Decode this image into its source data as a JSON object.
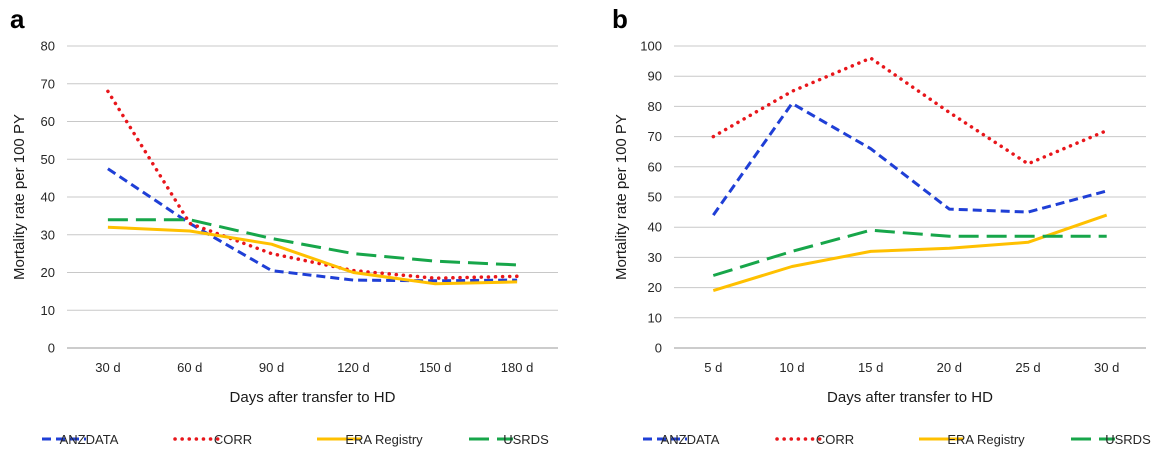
{
  "colors": {
    "ANZDATA": "#1f3fd6",
    "CORR": "#e8161b",
    "ERA Registry": "#ffc000",
    "USRDS": "#17a64a",
    "grid": "#c8c8c8",
    "axis": "#999999"
  },
  "chart_data": [
    {
      "type": "line",
      "panel": "a",
      "xlabel": "Days after transfer to HD",
      "ylabel": "Mortality rate per 100 PY",
      "ylim": [
        0,
        80
      ],
      "ytick_step": 10,
      "grid": true,
      "legend_position": "bottom",
      "categories": [
        "30 d",
        "60 d",
        "90 d",
        "120 d",
        "150 d",
        "180 d"
      ],
      "series": [
        {
          "name": "ANZDATA",
          "style": "dashed",
          "values": [
            47.5,
            33,
            20.5,
            18,
            17.8,
            18
          ]
        },
        {
          "name": "CORR",
          "style": "dotted",
          "values": [
            68,
            33,
            25,
            20.5,
            18.5,
            19
          ]
        },
        {
          "name": "ERA Registry",
          "style": "solid",
          "values": [
            32,
            31,
            27.5,
            20,
            17,
            17.5
          ]
        },
        {
          "name": "USRDS",
          "style": "longdash",
          "values": [
            34,
            34,
            29,
            25,
            23,
            22
          ]
        }
      ]
    },
    {
      "type": "line",
      "panel": "b",
      "xlabel": "Days after transfer to HD",
      "ylabel": "Mortality rate per 100 PY",
      "ylim": [
        0,
        100
      ],
      "ytick_step": 10,
      "grid": true,
      "legend_position": "bottom",
      "categories": [
        "5 d",
        "10 d",
        "15 d",
        "20 d",
        "25 d",
        "30 d"
      ],
      "series": [
        {
          "name": "ANZDATA",
          "style": "dashed",
          "values": [
            44,
            81,
            66,
            46,
            45,
            52
          ]
        },
        {
          "name": "CORR",
          "style": "dotted",
          "values": [
            70,
            85,
            96,
            78,
            61,
            72
          ]
        },
        {
          "name": "ERA Registry",
          "style": "solid",
          "values": [
            19,
            27,
            32,
            33,
            35,
            44
          ]
        },
        {
          "name": "USRDS",
          "style": "longdash",
          "values": [
            24,
            32,
            39,
            37,
            37,
            37
          ]
        }
      ]
    }
  ]
}
